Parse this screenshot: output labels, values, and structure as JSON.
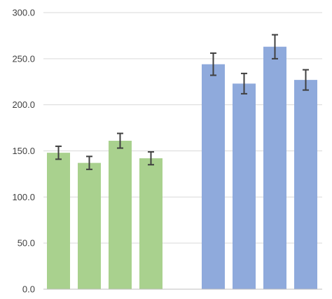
{
  "chart_data": {
    "type": "bar",
    "title": "",
    "xlabel": "",
    "ylabel": "",
    "ylim": [
      0,
      300
    ],
    "yticks": [
      "0.0",
      "50.0",
      "100.0",
      "150.0",
      "200.0",
      "250.0",
      "300.0"
    ],
    "grid": true,
    "legend": "none",
    "series": [
      {
        "color": "#a9d18e",
        "values": [
          148,
          137,
          161,
          142
        ],
        "error": [
          7,
          7,
          8,
          7
        ]
      },
      {
        "color": "#8faadc",
        "values": [
          244,
          223,
          263,
          227
        ],
        "error": [
          12,
          11,
          13,
          11
        ]
      }
    ]
  }
}
